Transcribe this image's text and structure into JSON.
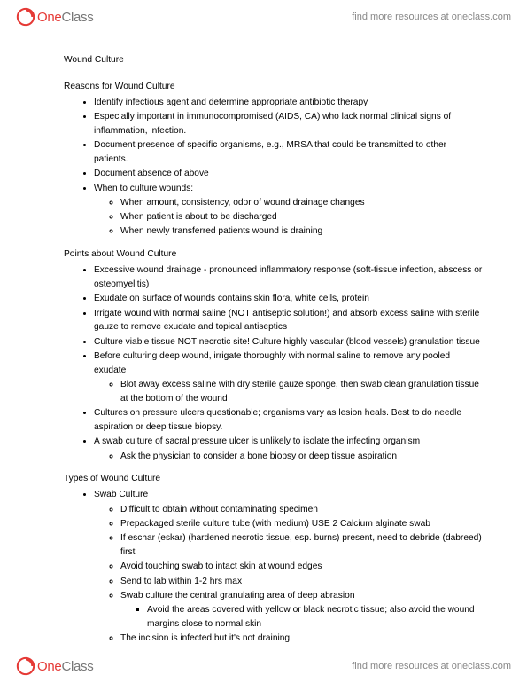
{
  "brand": {
    "one": "One",
    "class": "Class",
    "tagline": "find more resources at oneclass.com"
  },
  "doc": {
    "title": "Wound Culture",
    "sections": [
      {
        "heading": "Reasons for Wound Culture",
        "items": [
          {
            "t": "Identify infectious agent and determine appropriate antibiotic therapy"
          },
          {
            "t": "Especially important in immunocompromised (AIDS, CA) who lack normal clinical signs of inflammation, infection."
          },
          {
            "t": "Document presence of specific organisms, e.g., MRSA that could be transmitted to other patients."
          },
          {
            "pre": "Document ",
            "u": "absence",
            "post": " of above"
          },
          {
            "t": "When to culture wounds:",
            "sub": [
              {
                "t": "When amount, consistency, odor of wound drainage changes"
              },
              {
                "t": "When patient is about to be discharged"
              },
              {
                "t": "When newly transferred patients wound is draining"
              }
            ]
          }
        ]
      },
      {
        "heading": "Points about Wound Culture",
        "items": [
          {
            "t": "Excessive wound drainage - pronounced inflammatory response (soft-tissue infection, abscess or osteomyelitis)"
          },
          {
            "t": "Exudate on surface of wounds contains skin flora, white cells, protein"
          },
          {
            "t": "Irrigate wound with normal saline (NOT antiseptic solution!) and absorb excess saline with sterile gauze to remove exudate and topical antiseptics"
          },
          {
            "t": "Culture viable tissue NOT necrotic site!  Culture highly vascular (blood vessels) granulation tissue"
          },
          {
            "t": "Before culturing deep wound, irrigate thoroughly with normal saline to remove any pooled exudate",
            "sub": [
              {
                "t": "Blot away excess saline with dry sterile gauze sponge, then swab clean granulation tissue at the bottom of the wound"
              }
            ]
          },
          {
            "t": "Cultures on pressure ulcers questionable; organisms vary as lesion heals.  Best to do needle aspiration or deep tissue biopsy."
          },
          {
            "t": "A swab culture of sacral pressure ulcer is unlikely to isolate the infecting organism",
            "sub": [
              {
                "t": "Ask the physician to consider a bone biopsy or deep tissue aspiration"
              }
            ]
          }
        ]
      },
      {
        "heading": "Types of Wound Culture",
        "items": [
          {
            "t": "Swab Culture",
            "sub": [
              {
                "t": "Difficult to obtain without contaminating specimen"
              },
              {
                "t": "Prepackaged sterile culture tube (with medium) USE 2 Calcium alginate swab"
              },
              {
                "t": "If eschar (eskar) (hardened necrotic tissue, esp. burns) present, need to debride (dabreed) first"
              },
              {
                "t": "Avoid touching swab to intact skin at wound edges"
              },
              {
                "t": "Send to lab within 1-2 hrs max"
              },
              {
                "t": "Swab culture the central granulating area of deep abrasion",
                "sub3": [
                  {
                    "t": "Avoid the areas covered with yellow or black necrotic tissue; also avoid the wound margins close to normal skin"
                  }
                ]
              },
              {
                "t": "The incision is infected but it's not draining"
              }
            ]
          }
        ]
      }
    ]
  }
}
